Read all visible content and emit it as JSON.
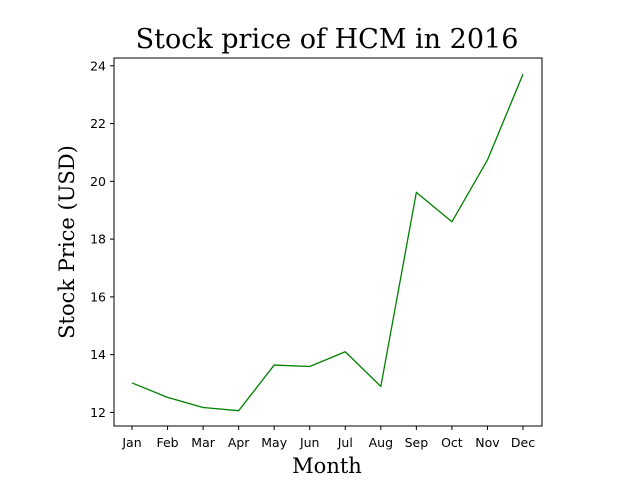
{
  "chart_data": {
    "type": "line",
    "title": "Stock price of HCM in 2016",
    "xlabel": "Month",
    "ylabel": "Stock Price (USD)",
    "categories": [
      "Jan",
      "Feb",
      "Mar",
      "Apr",
      "May",
      "Jun",
      "Jul",
      "Aug",
      "Sep",
      "Oct",
      "Nov",
      "Dec"
    ],
    "series": [
      {
        "values": [
          13.02,
          12.52,
          12.17,
          12.06,
          13.64,
          13.59,
          14.1,
          12.9,
          19.62,
          18.6,
          20.74,
          23.71
        ],
        "color": "#008000"
      }
    ],
    "ylim": [
      11.53,
      24.27
    ],
    "yticks": [
      12,
      14,
      16,
      18,
      20,
      22,
      24
    ],
    "grid": false,
    "legend": "none"
  }
}
